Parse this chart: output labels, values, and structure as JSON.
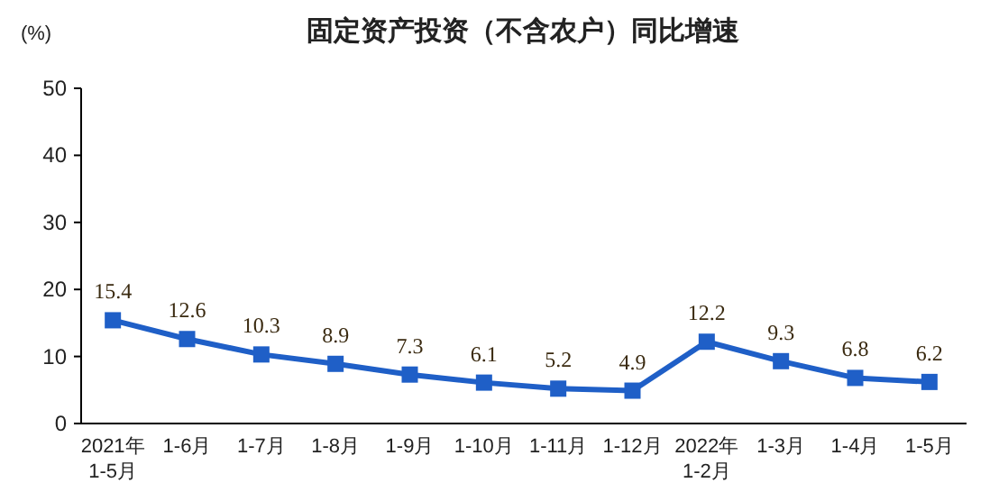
{
  "chart_data": {
    "type": "line",
    "title": "固定资产投资（不含农户）同比增速",
    "ylabel": "(%)",
    "categories": [
      "2021年\n1-5月",
      "1-6月",
      "1-7月",
      "1-8月",
      "1-9月",
      "1-10月",
      "1-11月",
      "1-12月",
      "2022年\n1-2月",
      "1-3月",
      "1-4月",
      "1-5月"
    ],
    "series": [
      {
        "color": "#1f5fc7",
        "values": [
          15.4,
          12.6,
          10.3,
          8.9,
          7.3,
          6.1,
          5.2,
          4.9,
          12.2,
          9.3,
          6.8,
          6.2
        ]
      }
    ],
    "ylim": [
      0,
      50
    ],
    "yticks": [
      0,
      10,
      20,
      30,
      40,
      50
    ],
    "marker": "square",
    "line_style": "solid",
    "data_labels": true,
    "grid": false
  }
}
